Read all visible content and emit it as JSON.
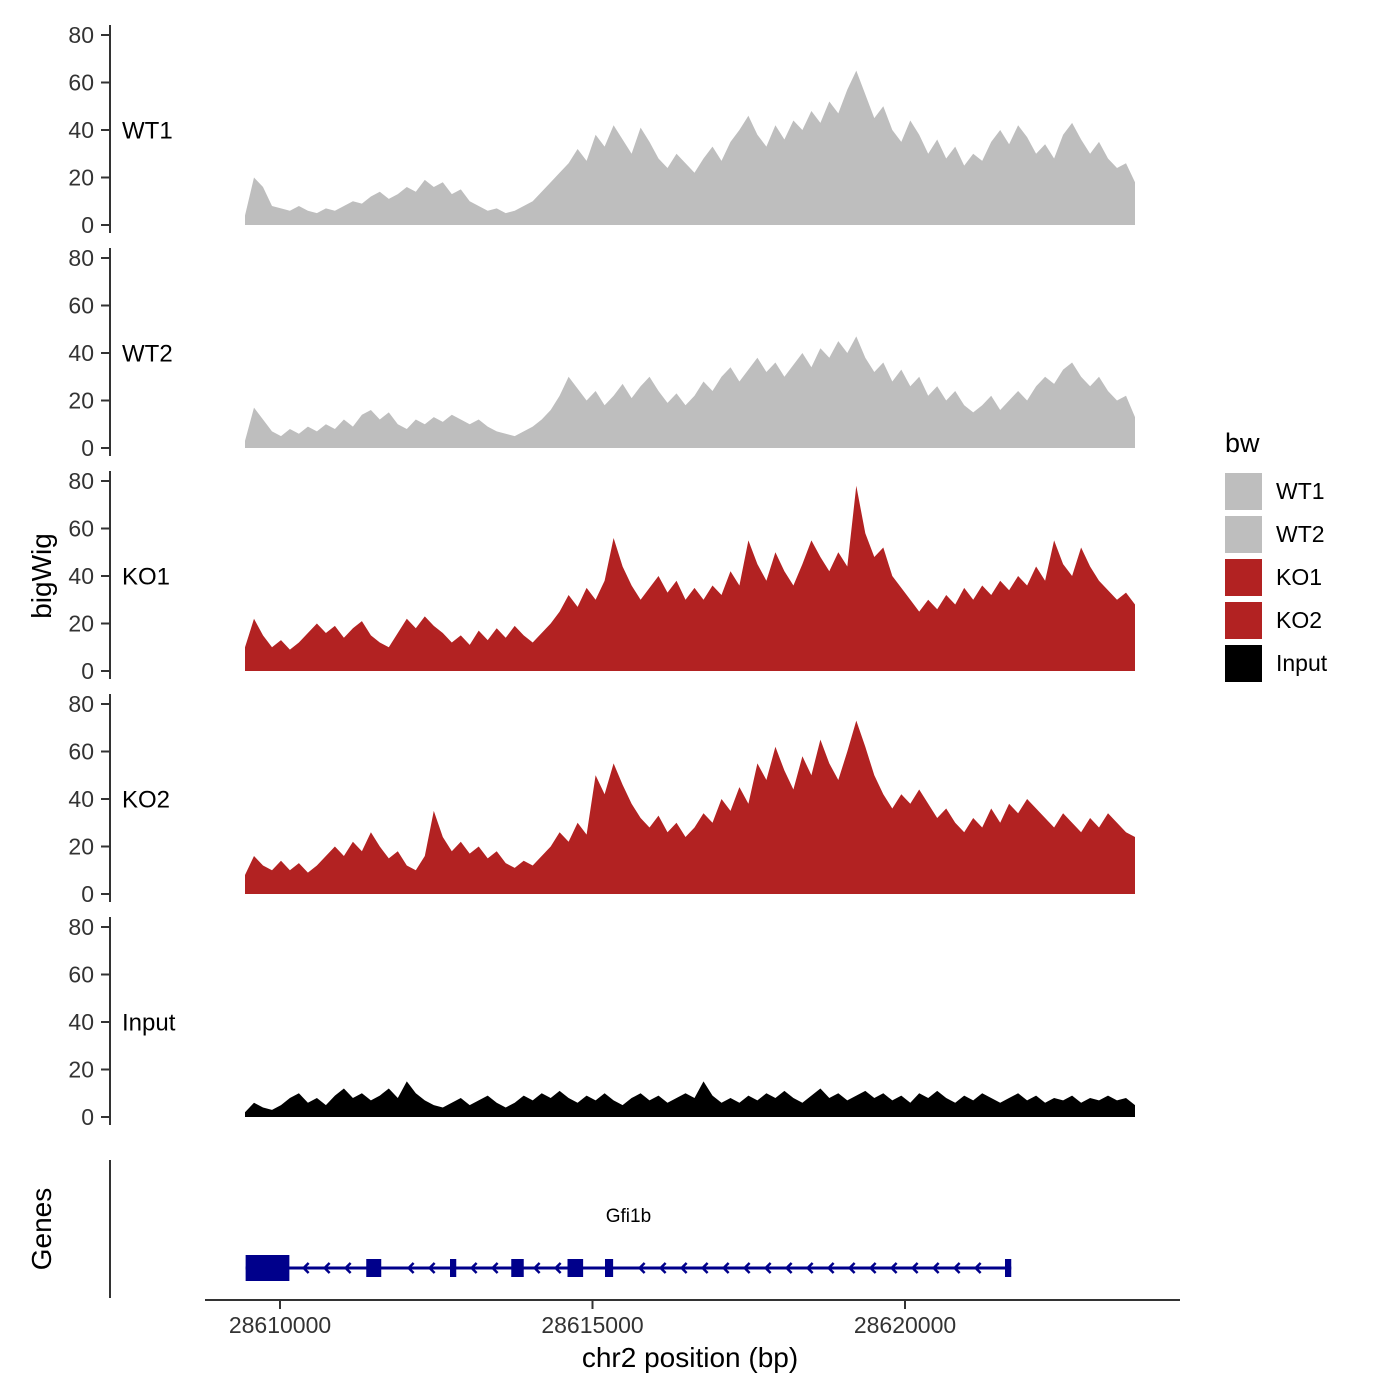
{
  "chart_data": {
    "type": "area",
    "title": "",
    "xlabel": "chr2 position (bp)",
    "ylabel": "bigWig",
    "x_range": [
      28609440,
      28623680
    ],
    "x_ticks": [
      28610000,
      28615000,
      28620000
    ],
    "ylim": [
      0,
      80
    ],
    "y_ticks": [
      0,
      20,
      40,
      60,
      80
    ],
    "grid": false,
    "legend": {
      "title": "bw",
      "position": "right",
      "entries": [
        {
          "label": "WT1",
          "color": "#BEBEBE"
        },
        {
          "label": "WT2",
          "color": "#BEBEBE"
        },
        {
          "label": "KO1",
          "color": "#B22222"
        },
        {
          "label": "KO2",
          "color": "#B22222"
        },
        {
          "label": "Input",
          "color": "#000000"
        }
      ]
    },
    "tracks": [
      {
        "name": "WT1",
        "color": "#BEBEBE",
        "values": [
          4,
          20,
          16,
          8,
          7,
          6,
          8,
          6,
          5,
          7,
          6,
          8,
          10,
          9,
          12,
          14,
          11,
          13,
          16,
          14,
          19,
          16,
          18,
          13,
          15,
          10,
          8,
          6,
          7,
          5,
          6,
          8,
          10,
          14,
          18,
          22,
          26,
          32,
          27,
          38,
          33,
          42,
          36,
          30,
          41,
          35,
          28,
          24,
          30,
          26,
          22,
          28,
          33,
          27,
          35,
          40,
          46,
          38,
          33,
          42,
          36,
          44,
          40,
          48,
          43,
          52,
          47,
          57,
          65,
          55,
          45,
          50,
          40,
          35,
          44,
          38,
          30,
          36,
          28,
          33,
          25,
          30,
          27,
          35,
          40,
          34,
          42,
          37,
          30,
          34,
          28,
          38,
          43,
          36,
          30,
          35,
          28,
          24,
          26,
          18
        ]
      },
      {
        "name": "WT2",
        "color": "#BEBEBE",
        "values": [
          3,
          17,
          12,
          7,
          5,
          8,
          6,
          9,
          7,
          10,
          8,
          12,
          9,
          14,
          16,
          12,
          15,
          10,
          8,
          12,
          10,
          13,
          11,
          14,
          12,
          10,
          12,
          9,
          7,
          6,
          5,
          7,
          9,
          12,
          16,
          22,
          30,
          25,
          20,
          24,
          18,
          22,
          27,
          21,
          26,
          30,
          24,
          19,
          23,
          18,
          22,
          28,
          24,
          30,
          34,
          28,
          33,
          38,
          32,
          36,
          30,
          35,
          40,
          34,
          42,
          38,
          45,
          40,
          47,
          38,
          32,
          36,
          28,
          33,
          26,
          30,
          22,
          26,
          20,
          24,
          18,
          15,
          18,
          22,
          16,
          20,
          24,
          20,
          26,
          30,
          27,
          33,
          36,
          30,
          26,
          30,
          24,
          20,
          22,
          13
        ]
      },
      {
        "name": "KO1",
        "color": "#B22222",
        "values": [
          10,
          22,
          15,
          10,
          13,
          9,
          12,
          16,
          20,
          16,
          19,
          14,
          18,
          21,
          15,
          12,
          10,
          16,
          22,
          18,
          23,
          19,
          16,
          12,
          15,
          11,
          17,
          13,
          18,
          14,
          19,
          15,
          12,
          16,
          20,
          25,
          32,
          27,
          35,
          30,
          38,
          56,
          44,
          36,
          30,
          35,
          40,
          33,
          38,
          30,
          35,
          30,
          36,
          32,
          42,
          36,
          55,
          45,
          38,
          50,
          42,
          36,
          45,
          55,
          48,
          42,
          50,
          44,
          78,
          58,
          48,
          52,
          40,
          35,
          30,
          25,
          30,
          26,
          32,
          28,
          35,
          30,
          36,
          32,
          38,
          34,
          40,
          36,
          44,
          38,
          55,
          45,
          40,
          52,
          44,
          38,
          34,
          30,
          33,
          28
        ]
      },
      {
        "name": "KO2",
        "color": "#B22222",
        "values": [
          8,
          16,
          12,
          10,
          14,
          10,
          13,
          9,
          12,
          16,
          20,
          16,
          22,
          18,
          26,
          20,
          15,
          18,
          12,
          10,
          16,
          35,
          24,
          18,
          22,
          17,
          20,
          15,
          18,
          13,
          11,
          14,
          12,
          16,
          20,
          26,
          22,
          30,
          25,
          50,
          42,
          55,
          46,
          38,
          32,
          28,
          33,
          26,
          30,
          24,
          28,
          34,
          30,
          40,
          35,
          45,
          38,
          55,
          48,
          62,
          52,
          44,
          58,
          50,
          65,
          55,
          48,
          60,
          73,
          62,
          50,
          42,
          36,
          42,
          38,
          44,
          38,
          32,
          36,
          30,
          26,
          32,
          28,
          36,
          30,
          38,
          34,
          40,
          36,
          32,
          28,
          34,
          30,
          26,
          32,
          28,
          34,
          30,
          26,
          24
        ]
      },
      {
        "name": "Input",
        "color": "#000000",
        "values": [
          2,
          6,
          4,
          3,
          5,
          8,
          10,
          6,
          8,
          5,
          9,
          12,
          8,
          10,
          7,
          9,
          12,
          8,
          15,
          10,
          7,
          5,
          4,
          6,
          8,
          5,
          7,
          9,
          6,
          4,
          6,
          9,
          7,
          10,
          8,
          11,
          8,
          6,
          9,
          7,
          10,
          7,
          5,
          8,
          10,
          7,
          9,
          6,
          8,
          10,
          8,
          15,
          9,
          6,
          8,
          6,
          9,
          7,
          10,
          8,
          11,
          8,
          6,
          9,
          12,
          8,
          10,
          7,
          9,
          11,
          8,
          10,
          7,
          9,
          6,
          10,
          8,
          11,
          8,
          6,
          9,
          7,
          10,
          8,
          6,
          8,
          10,
          7,
          9,
          6,
          8,
          7,
          9,
          6,
          8,
          7,
          9,
          7,
          8,
          5
        ]
      }
    ],
    "genes_track": {
      "label": "Genes",
      "gene": {
        "name": "Gfi1b",
        "strand": "-",
        "start": 28609450,
        "end": 28621700,
        "color": "#00008B",
        "exons": [
          [
            28609450,
            28610150
          ],
          [
            28611380,
            28611620
          ],
          [
            28612720,
            28612820
          ],
          [
            28613700,
            28613900
          ],
          [
            28614600,
            28614850
          ],
          [
            28615200,
            28615330
          ],
          [
            28621600,
            28621700
          ]
        ]
      }
    }
  }
}
